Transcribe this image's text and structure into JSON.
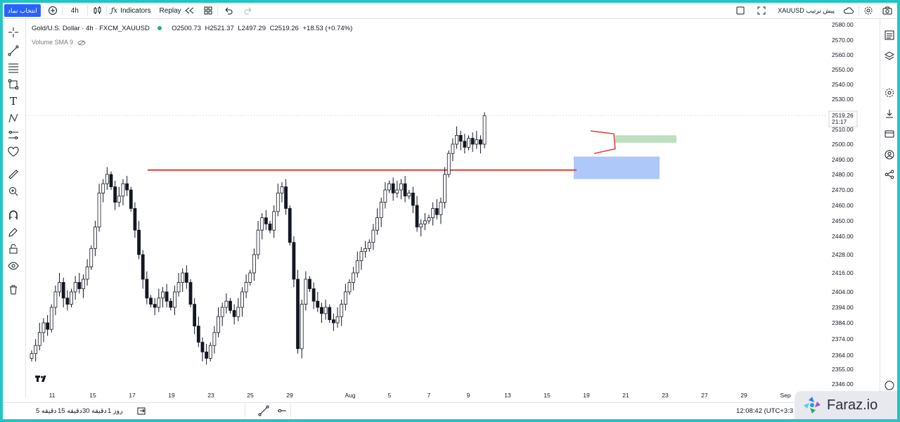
{
  "topbar": {
    "symbol_search": "انتخاب نماد",
    "interval": "4h",
    "indicators_label": "Indicators",
    "replay_label": "Replay",
    "broker_label": "XAUUSD پیش ترتیب"
  },
  "legend": {
    "title": "Gold/U.S. Dollar · 4h · FXCM_XAUUSD",
    "open": "O2500.73",
    "high": "H2521.37",
    "low": "L2497.29",
    "close": "C2519.26",
    "change": "+18.53 (+0.74%)",
    "volume_indicator": "Volume SMA 9"
  },
  "price_axis": {
    "labels": [
      "2580.00",
      "2570.00",
      "2560.00",
      "2550.00",
      "2540.00",
      "2530.00",
      "2510.00",
      "2500.00",
      "2490.00",
      "2480.00",
      "2470.00",
      "2460.00",
      "2450.00",
      "2440.00",
      "2428.00",
      "2416.00",
      "2404.00",
      "2394.00",
      "2384.00",
      "2374.00",
      "2364.00",
      "2355.00",
      "2346.00"
    ],
    "current_price": "2519.26",
    "countdown": "21:17"
  },
  "time_axis": {
    "labels": [
      "11",
      "15",
      "17",
      "19",
      "23",
      "25",
      "29",
      "Aug",
      "5",
      "7",
      "9",
      "13",
      "15",
      "19",
      "21",
      "23",
      "27",
      "29",
      "Sep"
    ]
  },
  "bottombar": {
    "ranges": [
      "5 دقیقه",
      "15 دقیقه",
      "30 دقیقه",
      "1 روز"
    ],
    "clock": "12:08:42 (UTC+3:3"
  },
  "watermark": {
    "text": "Faraz.io"
  },
  "colors": {
    "frame": "#22c4c8",
    "resistance_line": "#e53935",
    "demand_zone": "#7aa3f7",
    "target_zone": "#a5d6a7",
    "candle": "#131722"
  },
  "chart_data": {
    "type": "candlestick",
    "title": "Gold/U.S. Dollar · 4h · FXCM_XAUUSD",
    "ylim": [
      2342,
      2584
    ],
    "y_scale": "non-linear as printed on axis",
    "x_ticks": [
      "11",
      "15",
      "17",
      "19",
      "23",
      "25",
      "29",
      "Aug",
      "5",
      "7",
      "9",
      "13",
      "15",
      "19",
      "21",
      "23",
      "27",
      "29",
      "Sep"
    ],
    "last": {
      "open": 2500.73,
      "high": 2521.37,
      "low": 2497.29,
      "close": 2519.26
    },
    "closes": [
      2365,
      2370,
      2378,
      2384,
      2380,
      2394,
      2404,
      2410,
      2400,
      2396,
      2404,
      2410,
      2406,
      2412,
      2420,
      2432,
      2446,
      2468,
      2474,
      2480,
      2472,
      2462,
      2466,
      2474,
      2470,
      2458,
      2444,
      2428,
      2412,
      2400,
      2396,
      2394,
      2400,
      2404,
      2398,
      2394,
      2404,
      2410,
      2416,
      2410,
      2396,
      2382,
      2372,
      2366,
      2362,
      2370,
      2378,
      2388,
      2394,
      2398,
      2392,
      2388,
      2394,
      2404,
      2410,
      2416,
      2428,
      2444,
      2452,
      2448,
      2444,
      2456,
      2468,
      2472,
      2458,
      2436,
      2412,
      2368,
      2396,
      2412,
      2406,
      2398,
      2394,
      2390,
      2394,
      2386,
      2384,
      2388,
      2396,
      2404,
      2410,
      2416,
      2424,
      2430,
      2432,
      2436,
      2444,
      2452,
      2462,
      2470,
      2474,
      2468,
      2470,
      2474,
      2466,
      2468,
      2460,
      2446,
      2448,
      2450,
      2452,
      2458,
      2454,
      2462,
      2480,
      2494,
      2500,
      2506,
      2502,
      2498,
      2504,
      2500,
      2503,
      2500,
      2519
    ]
  }
}
